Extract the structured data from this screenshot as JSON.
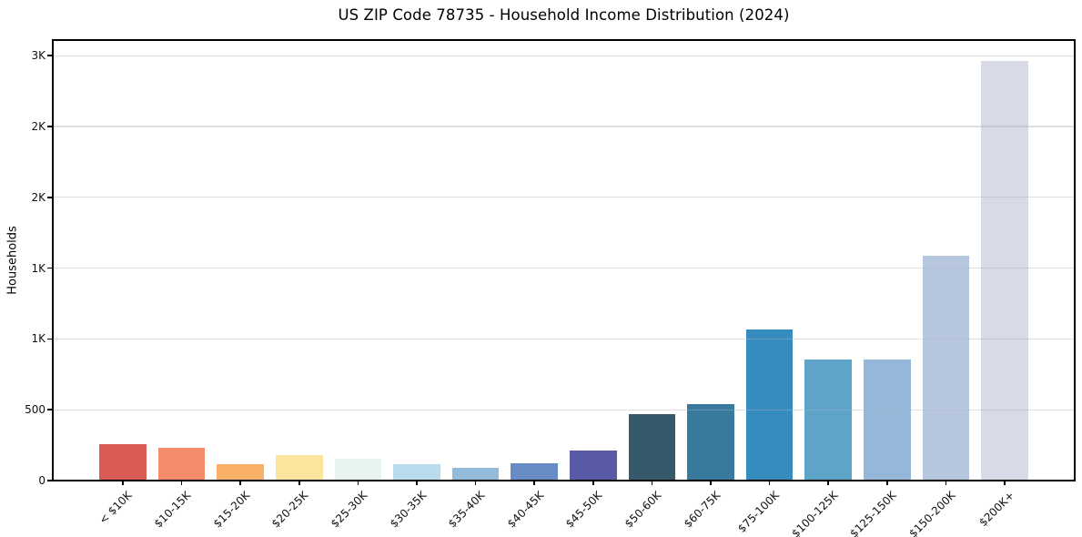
{
  "title": "US ZIP Code 78735 - Household Income Distribution (2024)",
  "chart_data": {
    "type": "bar",
    "title": "US ZIP Code 78735 - Household Income Distribution (2024)",
    "xlabel": "",
    "ylabel": "Households",
    "legend": "none",
    "grid": "horizontal",
    "background": "#ffffff",
    "axis_color": "#000000",
    "text_color": "#101010",
    "grid_color": "rgba(176,176,190,0.42)",
    "ylim": [
      0,
      3110
    ],
    "yticks": [
      {
        "value": 0,
        "label": "0"
      },
      {
        "value": 500,
        "label": "500"
      },
      {
        "value": 1000,
        "label": "1K"
      },
      {
        "value": 1500,
        "label": "1K"
      },
      {
        "value": 2000,
        "label": "2K"
      },
      {
        "value": 2500,
        "label": "2K"
      },
      {
        "value": 3000,
        "label": "3K"
      }
    ],
    "categories": [
      "< $10K",
      "$10-15K",
      "$15-20K",
      "$20-25K",
      "$25-30K",
      "$30-35K",
      "$35-40K",
      "$40-45K",
      "$45-50K",
      "$50-60K",
      "$60-75K",
      "$75-100K",
      "$100-125K",
      "$125-150K",
      "$150-200K",
      "$200K+"
    ],
    "values": [
      255,
      232,
      115,
      178,
      156,
      113,
      90,
      124,
      209,
      468,
      540,
      1068,
      856,
      856,
      1590,
      2960
    ],
    "bar_colors": [
      "#d85c54",
      "#f58a6c",
      "#f9b169",
      "#fce49c",
      "#e8f4f2",
      "#b9dcec",
      "#92bbdb",
      "#678cc5",
      "#585aa8",
      "#36596b",
      "#377a9c",
      "#368cbf",
      "#5ea4c9",
      "#95b7d9",
      "#b7c6df",
      "#d9dae8"
    ]
  }
}
